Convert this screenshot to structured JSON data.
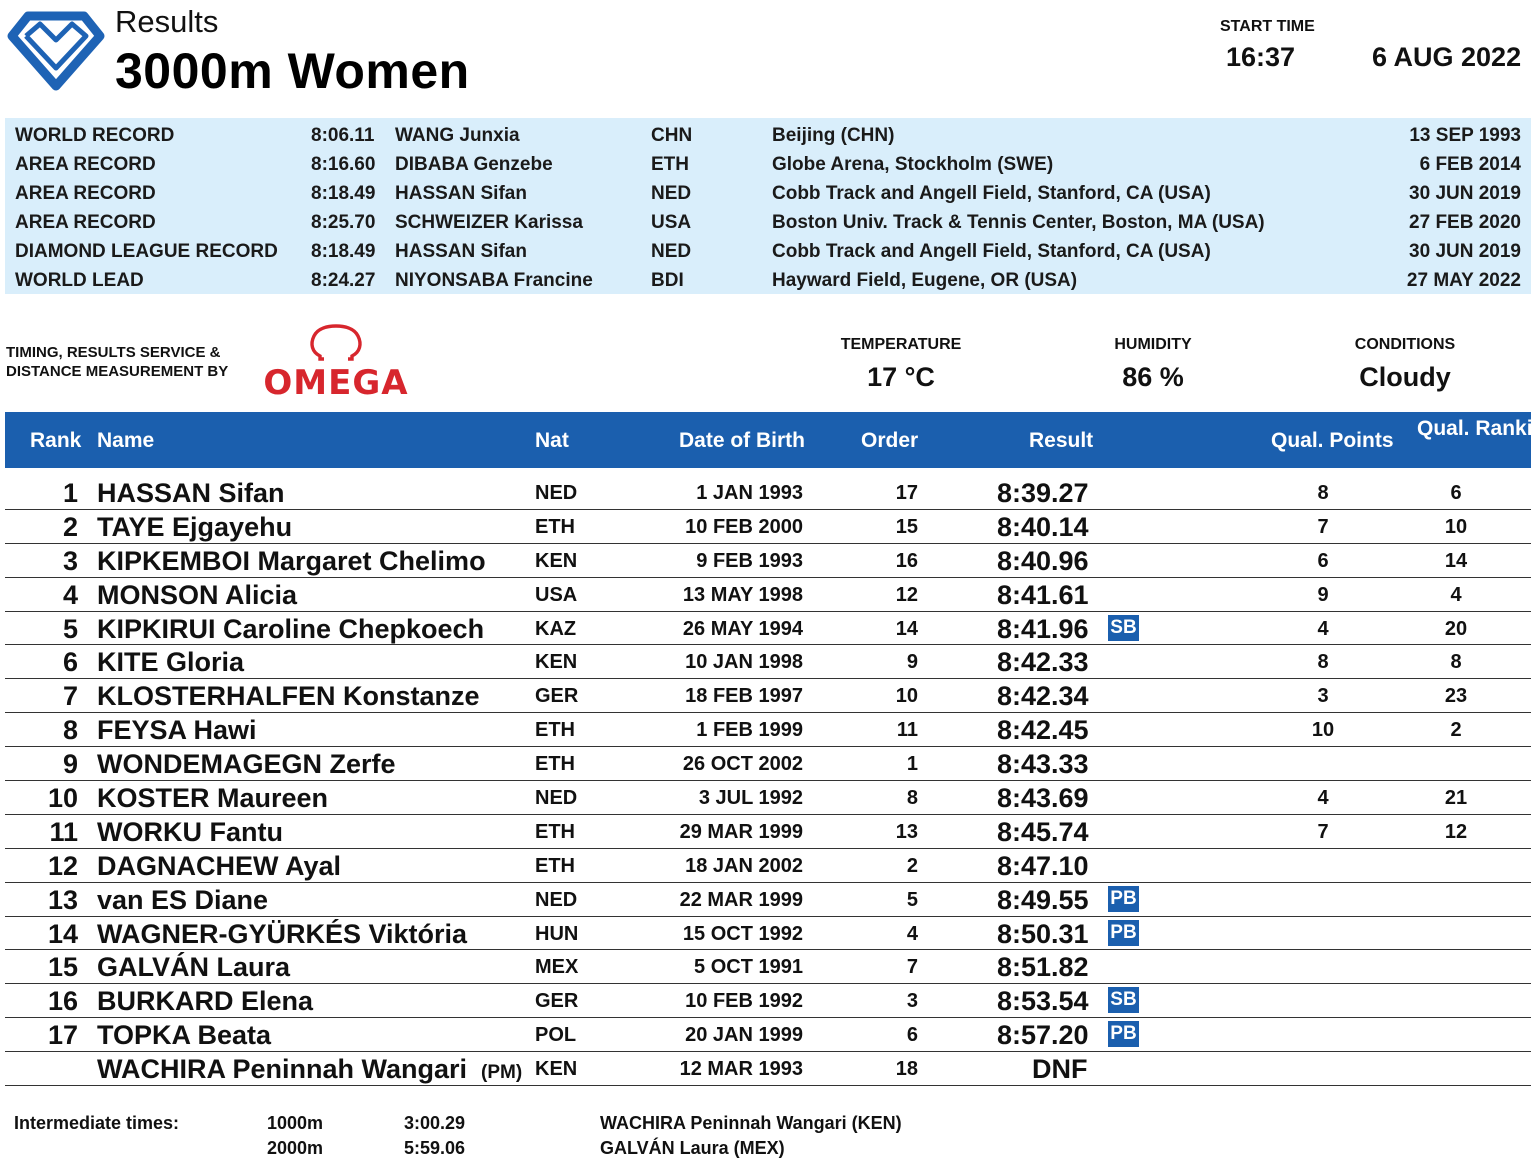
{
  "header": {
    "subtitle": "Results",
    "title": "3000m Women",
    "start_time_label": "START TIME",
    "start_time": "16:37",
    "date": "6 AUG 2022"
  },
  "records": [
    {
      "type": "WORLD RECORD",
      "time": "8:06.11",
      "name": "WANG Junxia",
      "nat": "CHN",
      "venue": "Beijing (CHN)",
      "date": "13 SEP 1993"
    },
    {
      "type": "AREA RECORD",
      "time": "8:16.60",
      "name": "DIBABA Genzebe",
      "nat": "ETH",
      "venue": "Globe Arena, Stockholm (SWE)",
      "date": "6 FEB 2014"
    },
    {
      "type": "AREA RECORD",
      "time": "8:18.49",
      "name": "HASSAN Sifan",
      "nat": "NED",
      "venue": "Cobb Track and Angell Field, Stanford, CA (USA)",
      "date": "30 JUN 2019"
    },
    {
      "type": "AREA RECORD",
      "time": "8:25.70",
      "name": "SCHWEIZER Karissa",
      "nat": "USA",
      "venue": "Boston Univ. Track & Tennis Center, Boston, MA (USA)",
      "date": "27 FEB 2020"
    },
    {
      "type": "DIAMOND LEAGUE RECORD",
      "time": "8:18.49",
      "name": "HASSAN Sifan",
      "nat": "NED",
      "venue": "Cobb Track and Angell Field, Stanford, CA (USA)",
      "date": "30 JUN 2019"
    },
    {
      "type": "WORLD LEAD",
      "time": "8:24.27",
      "name": "NIYONSABA Francine",
      "nat": "BDI",
      "venue": "Hayward Field, Eugene, OR (USA)",
      "date": "27 MAY 2022"
    }
  ],
  "timing": {
    "line1": "TIMING, RESULTS SERVICE &",
    "line2": "DISTANCE MEASUREMENT BY",
    "brand": "OMEGA",
    "brand_color": "#d7262d"
  },
  "weather": {
    "temperature_label": "TEMPERATURE",
    "temperature": "17 °C",
    "humidity_label": "HUMIDITY",
    "humidity": "86 %",
    "conditions_label": "CONDITIONS",
    "conditions": "Cloudy"
  },
  "columns": {
    "rank": "Rank",
    "name": "Name",
    "nat": "Nat",
    "dob": "Date of Birth",
    "order": "Order",
    "result": "Result",
    "qual_points": "Qual. Points",
    "qual_ranking": "Qual. Ranking"
  },
  "results": [
    {
      "rank": "1",
      "name": "HASSAN Sifan",
      "pm": "",
      "nat": "NED",
      "dob": "1 JAN 1993",
      "order": "17",
      "result": "8:39.27",
      "badge": "",
      "qual_points": "8",
      "qual_ranking": "6"
    },
    {
      "rank": "2",
      "name": "TAYE Ejgayehu",
      "pm": "",
      "nat": "ETH",
      "dob": "10 FEB 2000",
      "order": "15",
      "result": "8:40.14",
      "badge": "",
      "qual_points": "7",
      "qual_ranking": "10"
    },
    {
      "rank": "3",
      "name": "KIPKEMBOI Margaret Chelimo",
      "pm": "",
      "nat": "KEN",
      "dob": "9 FEB 1993",
      "order": "16",
      "result": "8:40.96",
      "badge": "",
      "qual_points": "6",
      "qual_ranking": "14"
    },
    {
      "rank": "4",
      "name": "MONSON Alicia",
      "pm": "",
      "nat": "USA",
      "dob": "13 MAY 1998",
      "order": "12",
      "result": "8:41.61",
      "badge": "",
      "qual_points": "9",
      "qual_ranking": "4"
    },
    {
      "rank": "5",
      "name": "KIPKIRUI Caroline Chepkoech",
      "pm": "",
      "nat": "KAZ",
      "dob": "26 MAY 1994",
      "order": "14",
      "result": "8:41.96",
      "badge": "SB",
      "qual_points": "4",
      "qual_ranking": "20"
    },
    {
      "rank": "6",
      "name": "KITE Gloria",
      "pm": "",
      "nat": "KEN",
      "dob": "10 JAN 1998",
      "order": "9",
      "result": "8:42.33",
      "badge": "",
      "qual_points": "8",
      "qual_ranking": "8"
    },
    {
      "rank": "7",
      "name": "KLOSTERHALFEN Konstanze",
      "pm": "",
      "nat": "GER",
      "dob": "18 FEB 1997",
      "order": "10",
      "result": "8:42.34",
      "badge": "",
      "qual_points": "3",
      "qual_ranking": "23"
    },
    {
      "rank": "8",
      "name": "FEYSA Hawi",
      "pm": "",
      "nat": "ETH",
      "dob": "1 FEB 1999",
      "order": "11",
      "result": "8:42.45",
      "badge": "",
      "qual_points": "10",
      "qual_ranking": "2"
    },
    {
      "rank": "9",
      "name": "WONDEMAGEGN Zerfe",
      "pm": "",
      "nat": "ETH",
      "dob": "26 OCT 2002",
      "order": "1",
      "result": "8:43.33",
      "badge": "",
      "qual_points": "",
      "qual_ranking": ""
    },
    {
      "rank": "10",
      "name": "KOSTER Maureen",
      "pm": "",
      "nat": "NED",
      "dob": "3 JUL 1992",
      "order": "8",
      "result": "8:43.69",
      "badge": "",
      "qual_points": "4",
      "qual_ranking": "21"
    },
    {
      "rank": "11",
      "name": "WORKU Fantu",
      "pm": "",
      "nat": "ETH",
      "dob": "29 MAR 1999",
      "order": "13",
      "result": "8:45.74",
      "badge": "",
      "qual_points": "7",
      "qual_ranking": "12"
    },
    {
      "rank": "12",
      "name": "DAGNACHEW Ayal",
      "pm": "",
      "nat": "ETH",
      "dob": "18 JAN 2002",
      "order": "2",
      "result": "8:47.10",
      "badge": "",
      "qual_points": "",
      "qual_ranking": ""
    },
    {
      "rank": "13",
      "name": "van ES Diane",
      "pm": "",
      "nat": "NED",
      "dob": "22 MAR 1999",
      "order": "5",
      "result": "8:49.55",
      "badge": "PB",
      "qual_points": "",
      "qual_ranking": ""
    },
    {
      "rank": "14",
      "name": "WAGNER-GYÜRKÉS Viktória",
      "pm": "",
      "nat": "HUN",
      "dob": "15 OCT 1992",
      "order": "4",
      "result": "8:50.31",
      "badge": "PB",
      "qual_points": "",
      "qual_ranking": ""
    },
    {
      "rank": "15",
      "name": "GALVÁN Laura",
      "pm": "",
      "nat": "MEX",
      "dob": "5 OCT 1991",
      "order": "7",
      "result": "8:51.82",
      "badge": "",
      "qual_points": "",
      "qual_ranking": ""
    },
    {
      "rank": "16",
      "name": "BURKARD Elena",
      "pm": "",
      "nat": "GER",
      "dob": "10 FEB 1992",
      "order": "3",
      "result": "8:53.54",
      "badge": "SB",
      "qual_points": "",
      "qual_ranking": ""
    },
    {
      "rank": "17",
      "name": "TOPKA Beata",
      "pm": "",
      "nat": "POL",
      "dob": "20 JAN 1999",
      "order": "6",
      "result": "8:57.20",
      "badge": "PB",
      "qual_points": "",
      "qual_ranking": ""
    },
    {
      "rank": "",
      "name": "WACHIRA Peninnah Wangari",
      "pm": "(PM)",
      "nat": "KEN",
      "dob": "12 MAR 1993",
      "order": "18",
      "result": "DNF",
      "badge": "",
      "qual_points": "",
      "qual_ranking": ""
    }
  ],
  "intermediate": {
    "label": "Intermediate times:",
    "splits": [
      {
        "distance": "1000m",
        "time": "3:00.29",
        "athlete": "WACHIRA Peninnah Wangari (KEN)"
      },
      {
        "distance": "2000m",
        "time": "5:59.06",
        "athlete": "GALVÁN Laura (MEX)"
      }
    ]
  },
  "colors": {
    "header_blue": "#1b5fae",
    "record_band": "#d9eefb",
    "badge_blue": "#1b5fae",
    "omega_red": "#d7262d"
  },
  "icons": {
    "logo": "diamond-league-logo",
    "brand_mark": "omega-symbol"
  }
}
